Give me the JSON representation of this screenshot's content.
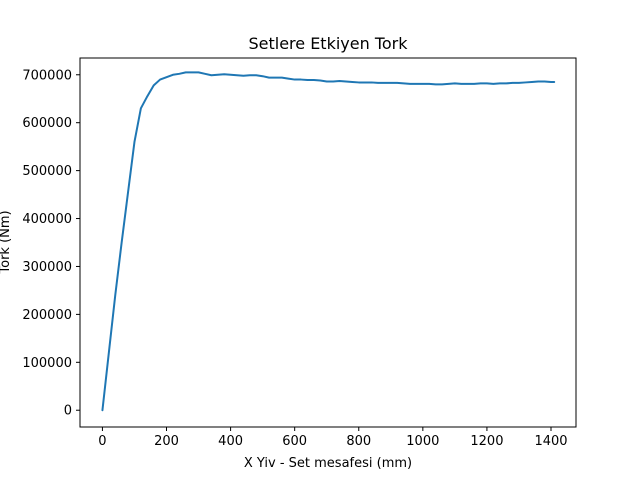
{
  "chart_data": {
    "type": "line",
    "title": "Setlere Etkiyen Tork",
    "xlabel": "X Yiv - Set mesafesi (mm)",
    "ylabel": "Tork (Nm)",
    "xlim": [
      -70,
      1478
    ],
    "ylim": [
      -35000,
      735000
    ],
    "xticks": [
      0,
      200,
      400,
      600,
      800,
      1000,
      1200,
      1400
    ],
    "yticks": [
      0,
      100000,
      200000,
      300000,
      400000,
      500000,
      600000,
      700000
    ],
    "grid": false,
    "line_color": "#1f77b4",
    "series": [
      {
        "x": [
          0,
          20,
          40,
          60,
          80,
          100,
          120,
          140,
          160,
          180,
          200,
          220,
          240,
          260,
          280,
          300,
          320,
          340,
          360,
          380,
          400,
          420,
          440,
          460,
          480,
          500,
          520,
          540,
          560,
          580,
          600,
          620,
          640,
          660,
          680,
          700,
          720,
          740,
          760,
          780,
          800,
          820,
          840,
          860,
          880,
          900,
          920,
          940,
          960,
          980,
          1000,
          1020,
          1040,
          1060,
          1080,
          1100,
          1120,
          1140,
          1160,
          1180,
          1200,
          1220,
          1240,
          1260,
          1280,
          1300,
          1320,
          1340,
          1360,
          1380,
          1400,
          1410
        ],
        "values": [
          0,
          120000,
          240000,
          350000,
          455000,
          560000,
          630000,
          655000,
          678000,
          690000,
          695000,
          700000,
          702000,
          705000,
          705000,
          705000,
          702000,
          699000,
          700000,
          701000,
          700000,
          699000,
          698000,
          699000,
          699000,
          697000,
          694000,
          694000,
          694000,
          692000,
          690000,
          690000,
          689000,
          689000,
          688000,
          686000,
          686000,
          687000,
          686000,
          685000,
          684000,
          684000,
          684000,
          683000,
          683000,
          683000,
          683000,
          682000,
          681000,
          681000,
          681000,
          681000,
          680000,
          680000,
          681000,
          682000,
          681000,
          681000,
          681000,
          682000,
          682000,
          681000,
          682000,
          682000,
          683000,
          683000,
          684000,
          685000,
          686000,
          686000,
          685000,
          685000
        ]
      }
    ]
  }
}
